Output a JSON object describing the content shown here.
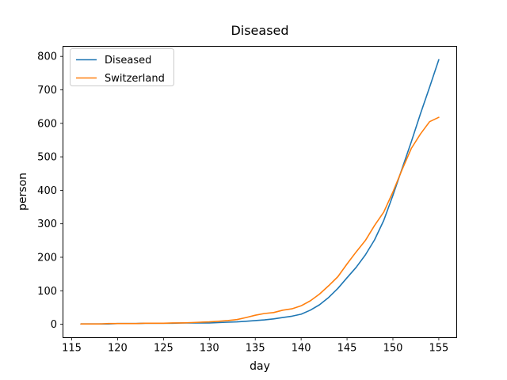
{
  "figure": {
    "background": "#ffffff",
    "axis_color": "#000000"
  },
  "chart_data": {
    "type": "line",
    "title": "Diseased",
    "xlabel": "day",
    "ylabel": "person",
    "grid": false,
    "legend_position": "upper left",
    "legend_border_color": "#cccccc",
    "xlim": [
      114.05,
      156.95
    ],
    "ylim": [
      -40,
      830
    ],
    "x_ticks": [
      115,
      120,
      125,
      130,
      135,
      140,
      145,
      150,
      155
    ],
    "y_ticks": [
      0,
      100,
      200,
      300,
      400,
      500,
      600,
      700,
      800
    ],
    "x": [
      116,
      117,
      118,
      119,
      120,
      121,
      122,
      123,
      124,
      125,
      126,
      127,
      128,
      129,
      130,
      131,
      132,
      133,
      134,
      135,
      136,
      137,
      138,
      139,
      140,
      141,
      142,
      143,
      144,
      145,
      146,
      147,
      148,
      149,
      150,
      151,
      152,
      153,
      154,
      155
    ],
    "series": [
      {
        "name": "Diseased",
        "color": "#1f77b4",
        "values": [
          1,
          1,
          1,
          1,
          2,
          2,
          2,
          3,
          3,
          3,
          3,
          4,
          4,
          4,
          4,
          5,
          6,
          7,
          9,
          11,
          13,
          16,
          20,
          24,
          30,
          42,
          58,
          80,
          107,
          139,
          170,
          207,
          252,
          310,
          385,
          465,
          545,
          628,
          708,
          790
        ]
      },
      {
        "name": "Switzerland",
        "color": "#ff7f0e",
        "values": [
          1,
          1,
          1,
          2,
          2,
          2,
          2,
          3,
          3,
          3,
          4,
          4,
          5,
          6,
          7,
          9,
          11,
          14,
          20,
          27,
          32,
          35,
          42,
          46,
          55,
          70,
          90,
          115,
          142,
          180,
          216,
          250,
          295,
          335,
          395,
          462,
          525,
          568,
          605,
          618
        ]
      }
    ]
  }
}
